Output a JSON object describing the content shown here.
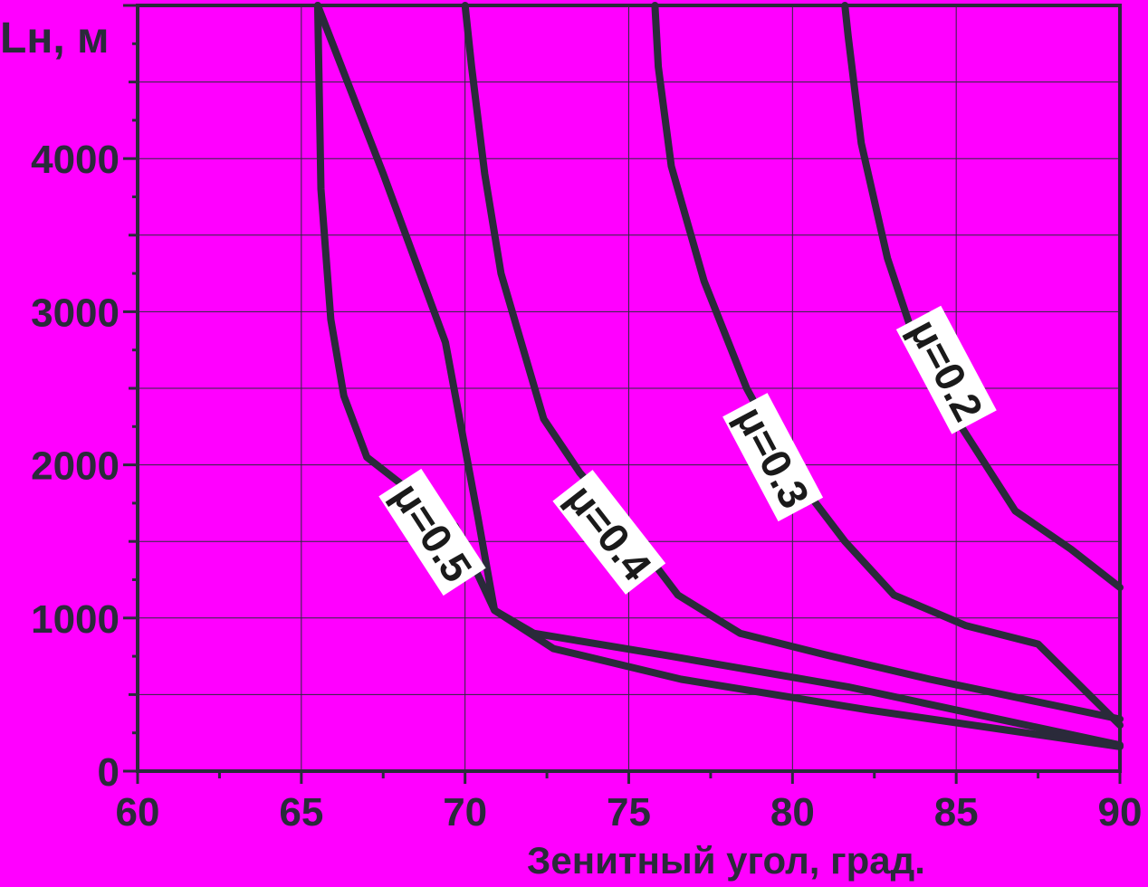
{
  "chart_data": {
    "type": "line",
    "xlabel": "Зенитный угол, град.",
    "ylabel": "Lн, м",
    "xlim": [
      60,
      90
    ],
    "ylim": [
      0,
      5000
    ],
    "x_ticks": [
      "60",
      "65",
      "70",
      "75",
      "80",
      "85",
      "90"
    ],
    "y_ticks": [
      "0",
      "1000",
      "2000",
      "3000",
      "4000"
    ],
    "grid": true,
    "colors": {
      "background": "#ff00ff",
      "line": "#2a2a3a",
      "grid": "#2a2a3a"
    },
    "series": [
      {
        "name": "μ=0.2",
        "x": [
          81.6,
          81.7,
          82.1,
          82.9,
          83.6,
          85.0,
          86.8,
          88.5,
          90.0
        ],
        "y": [
          5000,
          4800,
          4100,
          3350,
          2900,
          2300,
          1700,
          1450,
          1200
        ]
      },
      {
        "name": "μ=0.3",
        "x": [
          75.8,
          75.9,
          76.3,
          77.3,
          78.6,
          80.0,
          81.6,
          83.1,
          85.3,
          87.5,
          90.0
        ],
        "y": [
          5000,
          4600,
          3950,
          3200,
          2500,
          1950,
          1500,
          1150,
          950,
          830,
          300
        ]
      },
      {
        "name": "μ=0.4",
        "x": [
          70.0,
          70.2,
          70.6,
          71.1,
          72.4,
          73.5,
          74.9,
          76.5,
          78.4,
          81.0,
          84.2,
          90.0
        ],
        "y": [
          5000,
          4600,
          3900,
          3250,
          2300,
          1950,
          1600,
          1150,
          900,
          760,
          600,
          340
        ]
      },
      {
        "name": "μ=0.5",
        "x": [
          65.5,
          65.6,
          65.9,
          66.3,
          67.0,
          68.2,
          69.7,
          70.9,
          72.7,
          76.6,
          82.3,
          90.0
        ],
        "y": [
          5000,
          3800,
          2950,
          2450,
          2050,
          1850,
          1600,
          1050,
          800,
          600,
          400,
          160
        ]
      },
      {
        "name": "",
        "x": [
          65.5,
          67.5,
          69.4,
          70.4,
          70.9,
          72.1,
          76.3,
          81.7,
          90.0
        ],
        "y": [
          5000,
          3900,
          2800,
          1650,
          1050,
          900,
          750,
          550,
          170
        ]
      }
    ],
    "annotations": [
      {
        "text": "μ=0.5",
        "x": 69.0,
        "y": 1560,
        "angle": 57
      },
      {
        "text": "μ=0.4",
        "x": 74.4,
        "y": 1560,
        "angle": 52
      },
      {
        "text": "μ=0.3",
        "x": 79.4,
        "y": 2050,
        "angle": 62
      },
      {
        "text": "μ=0.2",
        "x": 84.7,
        "y": 2620,
        "angle": 62
      }
    ]
  }
}
